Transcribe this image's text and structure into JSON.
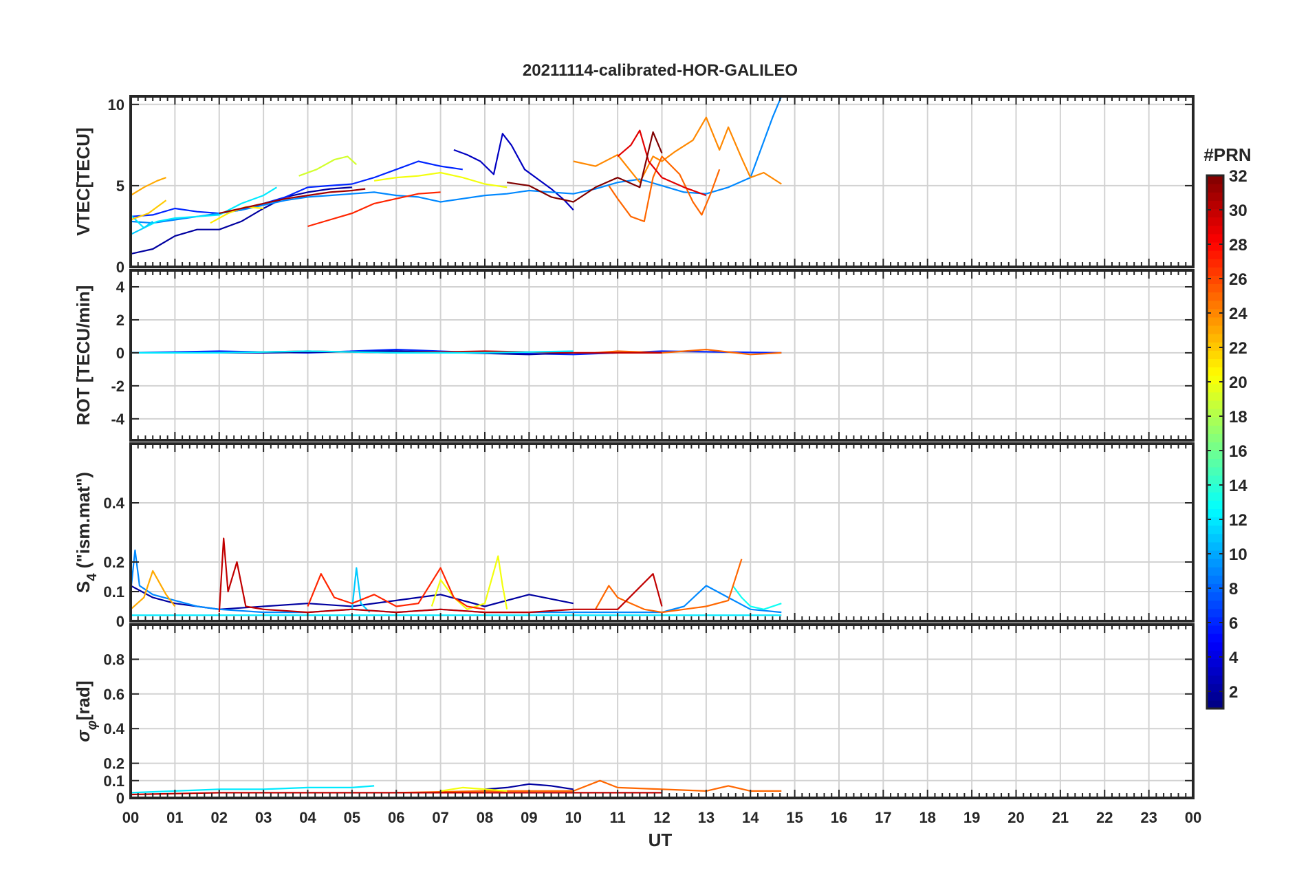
{
  "chart_data": {
    "type": "line",
    "title": "20211114-calibrated-HOR-GALILEO",
    "xlabel": "UT",
    "x_ticklabels": [
      "00",
      "01",
      "02",
      "03",
      "04",
      "05",
      "06",
      "07",
      "08",
      "09",
      "10",
      "11",
      "12",
      "13",
      "14",
      "15",
      "16",
      "17",
      "18",
      "19",
      "20",
      "21",
      "22",
      "23",
      "00"
    ],
    "xlim": [
      0,
      24
    ],
    "grid": true,
    "colorbar": {
      "label": "#PRN",
      "range": [
        1,
        32
      ],
      "ticks": [
        "2",
        "4",
        "6",
        "8",
        "10",
        "12",
        "14",
        "16",
        "18",
        "20",
        "22",
        "24",
        "26",
        "28",
        "30",
        "32"
      ],
      "colormap": "jet"
    },
    "panels": [
      {
        "ylabel": "VTEC[TECU]",
        "ylim": [
          0,
          10.5
        ],
        "yticks": [
          "0",
          "5",
          "10"
        ],
        "series": [
          {
            "prn": 2,
            "x": [
              0.0,
              0.5,
              1.0,
              1.5,
              2.0,
              2.5,
              3.0,
              3.5,
              4.0,
              4.5,
              5.0
            ],
            "y": [
              0.8,
              1.1,
              1.9,
              2.3,
              2.3,
              2.8,
              3.6,
              4.3,
              4.6,
              4.8,
              4.9
            ]
          },
          {
            "prn": 6,
            "x": [
              0.0,
              0.5,
              1.0,
              1.5,
              2.0,
              2.5,
              3.0,
              3.5,
              4.0,
              4.5,
              5.0,
              5.5,
              6.0,
              6.5,
              7.0,
              7.5
            ],
            "y": [
              3.1,
              3.2,
              3.6,
              3.4,
              3.3,
              3.5,
              3.9,
              4.3,
              4.9,
              5.0,
              5.1,
              5.5,
              6.0,
              6.5,
              6.2,
              6.0
            ]
          },
          {
            "prn": 3,
            "x": [
              7.3,
              7.6,
              7.9,
              8.2,
              8.4,
              8.6,
              8.9,
              9.2,
              9.5,
              9.8,
              10.0
            ],
            "y": [
              7.2,
              6.9,
              6.5,
              5.7,
              8.2,
              7.5,
              6.0,
              5.4,
              4.8,
              4.1,
              3.5
            ]
          },
          {
            "prn": 9,
            "x": [
              0.0,
              0.5,
              1.0,
              1.5,
              2.0,
              2.5,
              3.0,
              3.5,
              4.0,
              4.5,
              5.0,
              5.5,
              6.0,
              6.5,
              7.0,
              7.5,
              8.0,
              8.5,
              9.0,
              9.5,
              10.0,
              10.5,
              11.0,
              11.5,
              12.0,
              12.5,
              13.0,
              13.5,
              14.0,
              14.5,
              14.7
            ],
            "y": [
              2.8,
              2.7,
              2.9,
              3.1,
              3.3,
              3.5,
              3.8,
              4.1,
              4.3,
              4.4,
              4.5,
              4.6,
              4.4,
              4.3,
              4.0,
              4.2,
              4.4,
              4.5,
              4.7,
              4.6,
              4.5,
              4.8,
              5.2,
              5.4,
              5.0,
              4.6,
              4.5,
              4.9,
              5.5,
              9.2,
              10.5
            ]
          },
          {
            "prn": 12,
            "x": [
              0.0,
              0.3,
              0.6,
              1.0,
              1.5,
              2.0,
              2.5,
              3.0,
              3.3
            ],
            "y": [
              3.2,
              2.4,
              2.8,
              3.0,
              3.1,
              3.2,
              3.9,
              4.4,
              4.9
            ]
          },
          {
            "prn": 11,
            "x": [
              0.0,
              0.3,
              0.5
            ],
            "y": [
              2.0,
              2.4,
              2.8
            ]
          },
          {
            "prn": 19,
            "x": [
              3.8,
              4.2,
              4.6,
              4.9,
              5.1
            ],
            "y": [
              5.6,
              6.0,
              6.6,
              6.8,
              6.3
            ]
          },
          {
            "prn": 20,
            "x": [
              5.5,
              6.0,
              6.5,
              7.0,
              7.5,
              8.0,
              8.5
            ],
            "y": [
              5.3,
              5.5,
              5.6,
              5.8,
              5.5,
              5.1,
              4.9
            ]
          },
          {
            "prn": 21,
            "x": [
              1.8,
              2.2,
              2.6,
              3.0
            ],
            "y": [
              2.7,
              3.3,
              3.7,
              3.6
            ]
          },
          {
            "prn": 23,
            "x": [
              0.0,
              0.3,
              0.6,
              0.8
            ],
            "y": [
              4.4,
              4.9,
              5.3,
              5.5
            ]
          },
          {
            "prn": 24,
            "x": [
              10.0,
              10.5,
              11.0,
              11.5,
              11.8,
              12.0,
              12.3,
              12.7,
              13.0,
              13.3,
              13.5,
              13.8,
              14.0,
              14.3,
              14.7
            ],
            "y": [
              6.5,
              6.2,
              6.9,
              5.2,
              6.8,
              6.5,
              7.1,
              7.8,
              9.2,
              7.2,
              8.6,
              6.7,
              5.5,
              5.8,
              5.1
            ]
          },
          {
            "prn": 22,
            "x": [
              0.0,
              0.4,
              0.8
            ],
            "y": [
              2.9,
              3.3,
              4.1
            ]
          },
          {
            "prn": 25,
            "x": [
              10.8,
              11.0,
              11.3,
              11.6,
              11.8,
              12.0,
              12.4,
              12.7,
              12.9,
              13.1,
              13.3
            ],
            "y": [
              5.0,
              4.2,
              3.1,
              2.8,
              5.5,
              6.8,
              5.7,
              4.0,
              3.2,
              4.5,
              6.0
            ]
          },
          {
            "prn": 27,
            "x": [
              4.0,
              4.5,
              5.0,
              5.5,
              6.0,
              6.5,
              7.0
            ],
            "y": [
              2.5,
              2.9,
              3.3,
              3.9,
              4.2,
              4.5,
              4.6
            ]
          },
          {
            "prn": 29,
            "x": [
              11.0,
              11.3,
              11.5,
              11.7,
              12.0,
              12.5,
              13.0
            ],
            "y": [
              6.8,
              7.5,
              8.4,
              6.5,
              5.5,
              4.9,
              4.4
            ]
          },
          {
            "prn": 31,
            "x": [
              2.0,
              2.5,
              3.0,
              3.5,
              4.0,
              4.5,
              5.0,
              5.3
            ],
            "y": [
              3.3,
              3.6,
              3.9,
              4.2,
              4.4,
              4.6,
              4.7,
              4.8
            ]
          },
          {
            "prn": 32,
            "x": [
              8.5,
              9.0,
              9.5,
              10.0,
              10.5,
              11.0,
              11.5,
              11.8,
              12.0
            ],
            "y": [
              5.2,
              5.0,
              4.3,
              4.0,
              4.9,
              5.5,
              4.9,
              8.3,
              7.0
            ]
          }
        ]
      },
      {
        "ylabel": "ROT [TECU/min]",
        "ylim": [
          -5.3,
          5
        ],
        "yticks": [
          "-4",
          "-2",
          "0",
          "2",
          "4"
        ],
        "series": [
          {
            "prn": 6,
            "x": [
              0.0,
              2.0,
              4.0,
              6.0,
              8.0,
              10.0,
              12.0,
              14.7
            ],
            "y": [
              0.0,
              0.1,
              0.0,
              0.2,
              0.0,
              -0.1,
              0.1,
              0.0
            ]
          },
          {
            "prn": 2,
            "x": [
              0.0,
              3.0,
              6.0,
              9.0,
              10.0
            ],
            "y": [
              0.0,
              0.0,
              0.1,
              -0.1,
              0.0
            ]
          },
          {
            "prn": 25,
            "x": [
              10.5,
              11.0,
              12.0,
              13.0,
              14.0,
              14.7
            ],
            "y": [
              0.0,
              0.1,
              0.0,
              0.2,
              -0.1,
              0.0
            ]
          },
          {
            "prn": 30,
            "x": [
              2.0,
              4.0,
              6.0,
              8.0,
              10.0,
              12.0
            ],
            "y": [
              0.0,
              0.1,
              0.0,
              0.1,
              0.0,
              0.0
            ]
          },
          {
            "prn": 12,
            "x": [
              0.0,
              2.0,
              4.0,
              6.0,
              8.0,
              10.0
            ],
            "y": [
              0.0,
              0.0,
              0.1,
              0.0,
              0.0,
              0.1
            ]
          }
        ]
      },
      {
        "ylabel": "S",
        "ylabel_sub": "4",
        "ylabel_rest": " (\"ism.mat\")",
        "ylim": [
          0,
          0.6
        ],
        "yticks": [
          "0",
          "0.1",
          "0.2",
          "0.4"
        ],
        "series": [
          {
            "prn": 2,
            "x": [
              0.0,
              0.5,
              1.0,
              1.5,
              2.0,
              3.0,
              4.0,
              5.0,
              6.0,
              7.0,
              8.0,
              9.0,
              10.0
            ],
            "y": [
              0.12,
              0.08,
              0.06,
              0.05,
              0.04,
              0.05,
              0.06,
              0.05,
              0.07,
              0.09,
              0.05,
              0.09,
              0.06
            ]
          },
          {
            "prn": 9,
            "x": [
              0.0,
              0.1,
              0.2,
              0.5,
              1.0,
              1.5,
              2.0,
              3.0,
              4.0,
              5.0,
              6.0,
              7.0,
              8.0,
              9.0,
              10.0,
              11.0,
              12.0,
              12.5,
              13.0,
              13.5,
              14.0,
              14.7
            ],
            "y": [
              0.1,
              0.24,
              0.12,
              0.09,
              0.07,
              0.05,
              0.04,
              0.03,
              0.03,
              0.04,
              0.03,
              0.04,
              0.03,
              0.03,
              0.03,
              0.03,
              0.03,
              0.05,
              0.12,
              0.08,
              0.04,
              0.03
            ]
          },
          {
            "prn": 11,
            "x": [
              5.0,
              5.1,
              5.2,
              5.4
            ],
            "y": [
              0.04,
              0.18,
              0.06,
              0.03
            ]
          },
          {
            "prn": 13,
            "x": [
              13.6,
              13.8,
              14.0,
              14.3,
              14.7
            ],
            "y": [
              0.12,
              0.08,
              0.05,
              0.04,
              0.06
            ]
          },
          {
            "prn": 20,
            "x": [
              6.8,
              7.0,
              7.3,
              7.6,
              8.0,
              8.3,
              8.4,
              8.5
            ],
            "y": [
              0.05,
              0.14,
              0.08,
              0.04,
              0.06,
              0.22,
              0.12,
              0.04
            ]
          },
          {
            "prn": 23,
            "x": [
              0.0,
              0.3,
              0.5,
              0.8,
              1.0
            ],
            "y": [
              0.04,
              0.08,
              0.17,
              0.09,
              0.05
            ]
          },
          {
            "prn": 25,
            "x": [
              10.5,
              10.8,
              11.0,
              11.3,
              11.6,
              12.0,
              12.5,
              13.0,
              13.5,
              13.8
            ],
            "y": [
              0.04,
              0.12,
              0.08,
              0.06,
              0.04,
              0.03,
              0.04,
              0.05,
              0.07,
              0.21
            ]
          },
          {
            "prn": 27,
            "x": [
              4.0,
              4.3,
              4.6,
              5.0,
              5.5,
              6.0,
              6.5,
              7.0,
              7.3,
              7.6,
              8.0
            ],
            "y": [
              0.05,
              0.16,
              0.08,
              0.06,
              0.09,
              0.05,
              0.06,
              0.18,
              0.08,
              0.05,
              0.04
            ]
          },
          {
            "prn": 30,
            "x": [
              2.0,
              2.1,
              2.2,
              2.4,
              2.6,
              3.0,
              4.0,
              5.0,
              6.0,
              7.0,
              8.0,
              9.0,
              10.0,
              11.0,
              11.8,
              12.0
            ],
            "y": [
              0.03,
              0.28,
              0.1,
              0.2,
              0.05,
              0.04,
              0.03,
              0.04,
              0.03,
              0.04,
              0.03,
              0.03,
              0.04,
              0.04,
              0.16,
              0.05
            ]
          },
          {
            "prn": 12,
            "x": [
              0.0,
              2.0,
              4.0,
              6.0,
              8.0,
              10.0,
              12.0,
              14.7
            ],
            "y": [
              0.02,
              0.02,
              0.02,
              0.02,
              0.02,
              0.02,
              0.02,
              0.02
            ]
          }
        ]
      },
      {
        "ylabel": "σ",
        "ylabel_sub": "φ",
        "ylabel_rest": "[rad]",
        "ylim": [
          0,
          1
        ],
        "yticks": [
          "0",
          "0.1",
          "0.2",
          "0.4",
          "0.6",
          "0.8"
        ],
        "series": [
          {
            "prn": 12,
            "x": [
              0.0,
              1.0,
              2.0,
              3.0,
              4.0,
              5.0,
              5.5
            ],
            "y": [
              0.03,
              0.04,
              0.05,
              0.05,
              0.06,
              0.06,
              0.07
            ]
          },
          {
            "prn": 2,
            "x": [
              8.0,
              8.5,
              9.0,
              9.5,
              10.0
            ],
            "y": [
              0.05,
              0.06,
              0.08,
              0.07,
              0.05
            ]
          },
          {
            "prn": 25,
            "x": [
              6.0,
              8.0,
              10.0,
              10.6,
              11.0,
              12.0,
              13.0,
              13.5,
              14.0,
              14.7
            ],
            "y": [
              0.03,
              0.04,
              0.04,
              0.1,
              0.06,
              0.05,
              0.04,
              0.07,
              0.04,
              0.04
            ]
          },
          {
            "prn": 30,
            "x": [
              0.0,
              2.0,
              4.0,
              6.0,
              8.0,
              10.0,
              12.0
            ],
            "y": [
              0.02,
              0.03,
              0.03,
              0.03,
              0.03,
              0.03,
              0.03
            ]
          },
          {
            "prn": 20,
            "x": [
              7.0,
              7.5,
              8.0,
              8.5
            ],
            "y": [
              0.04,
              0.06,
              0.05,
              0.04
            ]
          }
        ]
      }
    ]
  }
}
